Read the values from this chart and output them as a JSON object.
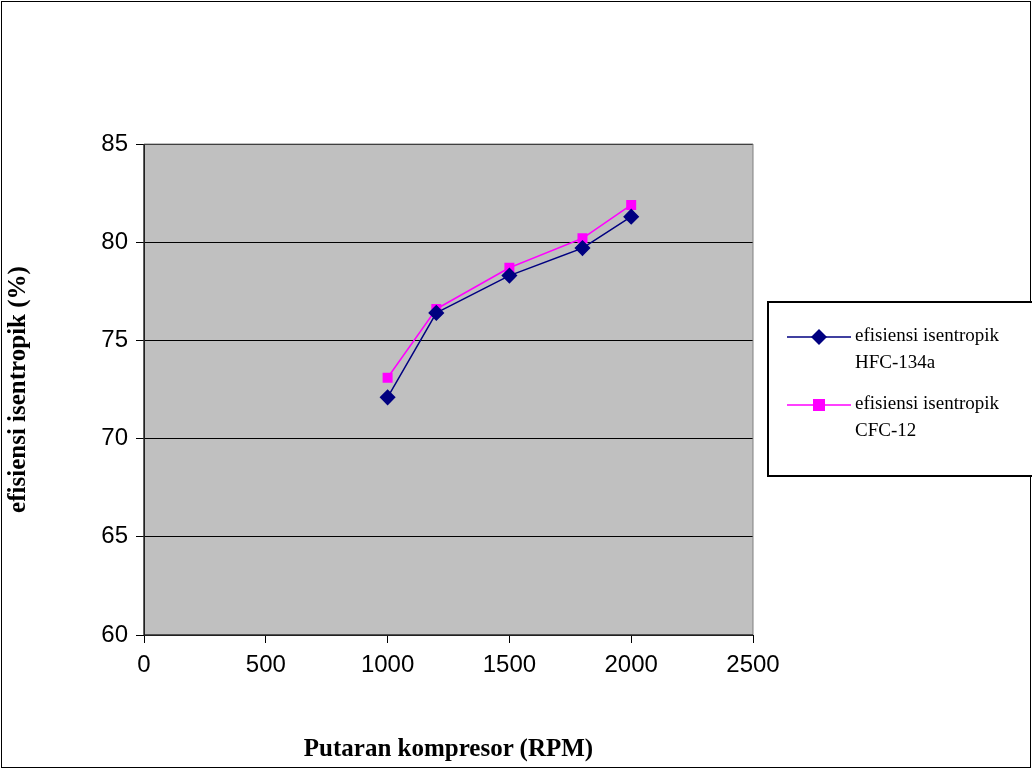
{
  "chart_data": {
    "type": "line",
    "xlabel": "Putaran kompresor (RPM)",
    "ylabel": "efisiensi isentropik (%)",
    "x": [
      1000,
      1200,
      1500,
      1800,
      2000
    ],
    "series": [
      {
        "name": "efisiensi isentropik HFC-134a",
        "color": "#000080",
        "marker": "diamond",
        "values": [
          72.1,
          76.4,
          78.3,
          79.7,
          81.3
        ]
      },
      {
        "name": "efisiensi isentropik CFC-12",
        "color": "#ff00ff",
        "marker": "square",
        "values": [
          73.1,
          76.6,
          78.7,
          80.2,
          81.9
        ]
      }
    ],
    "xlim": [
      0,
      2500
    ],
    "xticks": [
      0,
      500,
      1000,
      1500,
      2000,
      2500
    ],
    "ylim": [
      60,
      85
    ],
    "yticks": [
      60,
      65,
      70,
      75,
      80,
      85
    ],
    "grid": "y",
    "legend": "right",
    "line_style": "solid"
  }
}
